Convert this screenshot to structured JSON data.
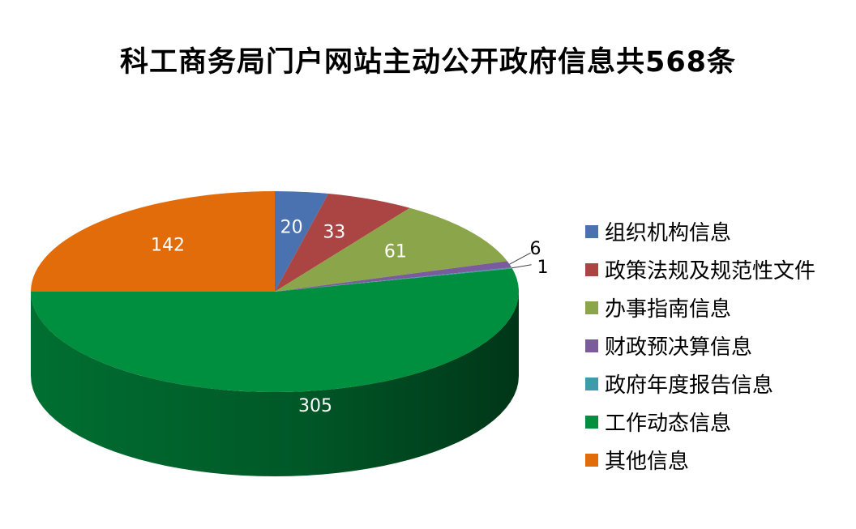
{
  "chart_data": {
    "type": "pie",
    "title": "科工商务局门户网站主动公开政府信息共568条",
    "categories": [
      "组织机构信息",
      "政策法规及规范性文件",
      "办事指南信息",
      "财政预决算信息",
      "政府年度报告信息",
      "工作动态信息",
      "其他信息"
    ],
    "values": [
      20,
      33,
      61,
      6,
      1,
      305,
      142
    ],
    "colors": [
      "#4a72b0",
      "#ab4543",
      "#8ba64a",
      "#7a5b9c",
      "#3f9aac",
      "#008e3f",
      "#e26b0a"
    ],
    "legend_position": "right"
  }
}
